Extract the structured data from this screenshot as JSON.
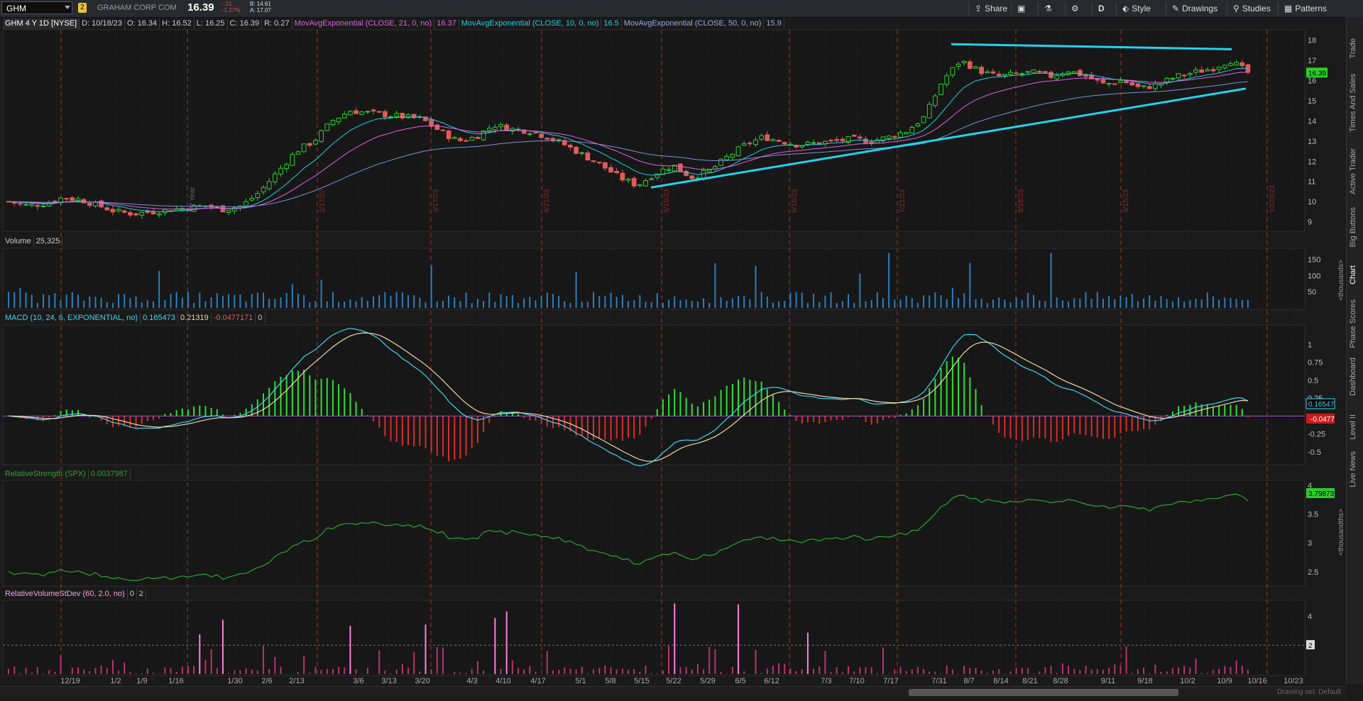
{
  "topbar": {
    "symbol": "GHM",
    "badge": "2",
    "company": "GRAHAM CORP COM",
    "last": "16.39",
    "change_top": "-.21",
    "change_pct": "-1.27%",
    "bid": "B: 14.61",
    "ask": "A: 17.07",
    "buttons": {
      "share": "Share",
      "timeframe": "D",
      "style": "Style",
      "drawings": "Drawings",
      "studies": "Studies",
      "patterns": "Patterns"
    }
  },
  "sidebar": {
    "tabs": [
      "Trade",
      "Times And Sales",
      "Active Trader",
      "Big Buttons",
      "Chart",
      "Phase Scores",
      "Dashboard",
      "Level II",
      "Live News"
    ],
    "active": "Chart"
  },
  "infobar": {
    "title": "GHM 4 Y 1D [NYSE]",
    "date": "D: 10/18/23",
    "open": "O: 16.34",
    "high": "H: 16.52",
    "low": "L: 16.25",
    "close": "C: 16.39",
    "range": "R: 0.27",
    "ema21_label": "MovAvgExponential (CLOSE, 21, 0, no)",
    "ema21_val": "16.37",
    "ema10_label": "MovAvgExponential (CLOSE, 10, 0, no)",
    "ema10_val": "16.5",
    "ema50_label": "MovAvgExponential (CLOSE, 50, 0, no)",
    "ema50_val": "15.9"
  },
  "volume": {
    "label": "Volume",
    "value": "25,325"
  },
  "macd": {
    "label": "MACD (10, 24, 6, EXPONENTIAL, no)",
    "value": "0.165473",
    "avg": "0.21319",
    "diff": "-0.0477171",
    "zero": "0"
  },
  "rs": {
    "label": "RelativeStrength (SPX)",
    "value": "0.0037987"
  },
  "rvsd": {
    "label": "RelativeVolumeStDev (60, 2.0, no)",
    "v1": "0",
    "v2": "2"
  },
  "footer_hint": "Drawing set: Default",
  "chart_data": {
    "type": "candlestick",
    "x_ticks": [
      "12/19",
      "1/2",
      "1/9",
      "1/16",
      "1/30",
      "2/6",
      "2/13",
      "3/6",
      "3/13",
      "3/20",
      "4/3",
      "4/10",
      "4/17",
      "5/1",
      "5/8",
      "5/15",
      "5/22",
      "5/29",
      "6/5",
      "6/12",
      "7/3",
      "7/10",
      "7/17",
      "7/31",
      "8/7",
      "8/14",
      "8/21",
      "8/28",
      "9/11",
      "9/18",
      "10/2",
      "10/9",
      "10/16",
      "10/23"
    ],
    "period_marks": [
      "1/2 Year",
      "2/17/23",
      "3/17/23",
      "4/21/23",
      "5/19/23",
      "6/16/23",
      "7/21/23",
      "8/18/23",
      "9/15/23",
      "10/20/23"
    ],
    "price_axis": {
      "ylim": [
        8.6,
        18.3
      ],
      "ticks": [
        9,
        10,
        11,
        12,
        13,
        14,
        15,
        16,
        17,
        18
      ]
    },
    "price_labels": {
      "last": "16.39"
    },
    "approx_closes": [
      10.0,
      9.8,
      9.9,
      10.2,
      10.1,
      9.8,
      9.5,
      9.4,
      9.5,
      9.6,
      9.7,
      9.8,
      9.6,
      9.8,
      10.5,
      11.5,
      12.5,
      13.0,
      14.0,
      14.5,
      14.4,
      14.3,
      14.2,
      14.1,
      13.5,
      13.0,
      13.2,
      13.8,
      13.6,
      13.5,
      13.2,
      12.8,
      12.3,
      11.8,
      11.2,
      10.8,
      11.4,
      11.8,
      11.2,
      11.5,
      12.2,
      12.8,
      13.2,
      13.0,
      12.8,
      12.9,
      13.0,
      13.1,
      13.0,
      13.2,
      13.5,
      14.2,
      16.0,
      17.0,
      16.5,
      16.2,
      16.3,
      16.4,
      16.2,
      16.5,
      16.2,
      15.8,
      16.0,
      15.6,
      15.8,
      16.2,
      16.4,
      16.6,
      17.0,
      16.39
    ],
    "trendlines": [
      {
        "name": "resistance",
        "from": [
          "8/2",
          17.8
        ],
        "to": [
          "10/12",
          17.55
        ]
      },
      {
        "name": "support",
        "from": [
          "5/15",
          10.7
        ],
        "to": [
          "10/16",
          15.6
        ]
      }
    ],
    "volume_axis": {
      "unit": "<thousands>",
      "ticks": [
        50,
        100,
        150
      ]
    },
    "macd_axis": {
      "ticks": [
        -0.5,
        -0.25,
        0.25,
        0.5,
        0.75,
        1
      ],
      "labels": {
        "value": "0.16547",
        "diff": "-0.0477"
      }
    },
    "rs_axis": {
      "unit": "<thousandths>",
      "ticks": [
        2.5,
        3,
        3.5,
        4
      ],
      "last": "3.79873"
    },
    "rvsd_axis": {
      "ticks": [
        2,
        4
      ],
      "mark": "2"
    },
    "colors": {
      "up": "#2ecc2e",
      "down": "#e25a5a",
      "ema21": "#e060e0",
      "ema10": "#20d0e0",
      "ema50": "#7d8fd8",
      "trendline": "#22d3ee",
      "volume": "#2a7fbf",
      "macd": "#3fd5f0",
      "signal": "#f0d6a8",
      "rs": "#2aa52a",
      "rvsd": "#ff7fd8",
      "period": "#b52a2a"
    }
  }
}
